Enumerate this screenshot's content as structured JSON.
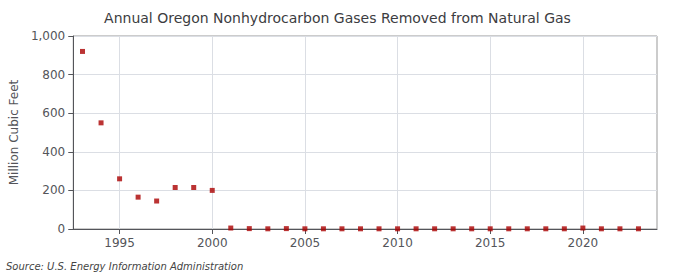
{
  "chart_data": {
    "type": "scatter",
    "title": "Annual Oregon Nonhydrocarbon Gases Removed from Natural Gas",
    "ylabel": "Million Cubic Feet",
    "annotation": "Source: U.S. Energy Information Administration",
    "x": [
      1993,
      1994,
      1995,
      1996,
      1997,
      1998,
      1999,
      2000,
      2001,
      2002,
      2003,
      2004,
      2005,
      2006,
      2007,
      2008,
      2009,
      2010,
      2011,
      2012,
      2013,
      2014,
      2015,
      2016,
      2017,
      2018,
      2019,
      2020,
      2021,
      2022,
      2023
    ],
    "values": [
      920,
      550,
      260,
      165,
      145,
      215,
      215,
      200,
      5,
      2,
      1,
      2,
      1,
      1,
      1,
      1,
      1,
      1,
      1,
      1,
      1,
      1,
      1,
      1,
      1,
      1,
      1,
      5,
      1,
      1,
      1
    ],
    "color": "#aa0000",
    "marker": "square",
    "xlim": [
      1992.5,
      2024
    ],
    "xticks": [
      1995,
      2000,
      2005,
      2010,
      2015,
      2020
    ],
    "ylim": [
      0,
      1000
    ],
    "yticks": [
      0,
      200,
      400,
      600,
      800,
      {
        "value": 1000,
        "label": "1,000"
      }
    ],
    "grid": true
  }
}
